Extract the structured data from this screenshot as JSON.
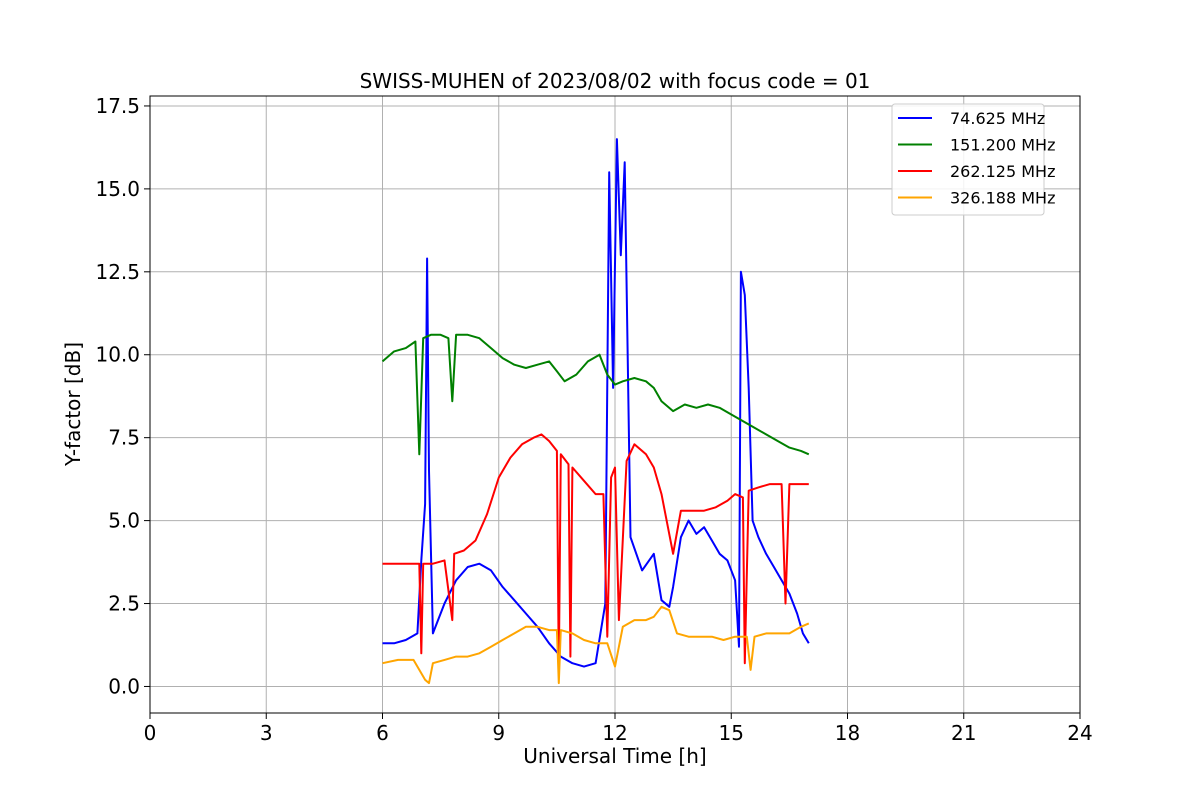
{
  "chart_data": {
    "type": "line",
    "title": "SWISS-MUHEN of 2023/08/02 with focus code = 01",
    "xlabel": "Universal Time [h]",
    "ylabel": "Y-factor [dB]",
    "xlim": [
      0,
      24
    ],
    "ylim": [
      -0.8,
      17.8
    ],
    "x_ticks": [
      0,
      3,
      6,
      9,
      12,
      15,
      18,
      21,
      24
    ],
    "x_tick_labels": [
      "0",
      "3",
      "6",
      "9",
      "12",
      "15",
      "18",
      "21",
      "24"
    ],
    "y_ticks": [
      0,
      2.5,
      5,
      7.5,
      10,
      12.5,
      15,
      17.5
    ],
    "y_tick_labels": [
      "0.0",
      "2.5",
      "5.0",
      "7.5",
      "10.0",
      "12.5",
      "15.0",
      "17.5"
    ],
    "grid": true,
    "legend_position": "top-right",
    "series": [
      {
        "name": "  74.625 MHz",
        "color": "#0000ff",
        "points": [
          [
            6.0,
            1.3
          ],
          [
            6.3,
            1.3
          ],
          [
            6.6,
            1.4
          ],
          [
            6.9,
            1.6
          ],
          [
            7.0,
            3.8
          ],
          [
            7.1,
            5.5
          ],
          [
            7.15,
            12.9
          ],
          [
            7.2,
            6.5
          ],
          [
            7.3,
            1.6
          ],
          [
            7.6,
            2.5
          ],
          [
            7.9,
            3.2
          ],
          [
            8.2,
            3.6
          ],
          [
            8.5,
            3.7
          ],
          [
            8.8,
            3.5
          ],
          [
            9.1,
            3.0
          ],
          [
            9.4,
            2.6
          ],
          [
            9.7,
            2.2
          ],
          [
            10.0,
            1.8
          ],
          [
            10.3,
            1.3
          ],
          [
            10.6,
            0.9
          ],
          [
            10.9,
            0.7
          ],
          [
            11.2,
            0.6
          ],
          [
            11.5,
            0.7
          ],
          [
            11.75,
            2.5
          ],
          [
            11.85,
            15.5
          ],
          [
            11.95,
            9.0
          ],
          [
            12.05,
            16.5
          ],
          [
            12.15,
            13.0
          ],
          [
            12.25,
            15.8
          ],
          [
            12.4,
            4.5
          ],
          [
            12.7,
            3.5
          ],
          [
            13.0,
            4.0
          ],
          [
            13.2,
            2.6
          ],
          [
            13.4,
            2.4
          ],
          [
            13.5,
            3.0
          ],
          [
            13.7,
            4.5
          ],
          [
            13.9,
            5.0
          ],
          [
            14.1,
            4.6
          ],
          [
            14.3,
            4.8
          ],
          [
            14.5,
            4.4
          ],
          [
            14.7,
            4.0
          ],
          [
            14.9,
            3.8
          ],
          [
            15.1,
            3.2
          ],
          [
            15.2,
            1.2
          ],
          [
            15.25,
            12.5
          ],
          [
            15.35,
            11.8
          ],
          [
            15.45,
            9.0
          ],
          [
            15.55,
            5.0
          ],
          [
            15.7,
            4.5
          ],
          [
            15.9,
            4.0
          ],
          [
            16.1,
            3.6
          ],
          [
            16.3,
            3.2
          ],
          [
            16.5,
            2.8
          ],
          [
            16.7,
            2.2
          ],
          [
            16.85,
            1.6
          ],
          [
            17.0,
            1.3
          ]
        ]
      },
      {
        "name": "151.200 MHz",
        "color": "#008000",
        "points": [
          [
            6.0,
            9.8
          ],
          [
            6.3,
            10.1
          ],
          [
            6.6,
            10.2
          ],
          [
            6.85,
            10.4
          ],
          [
            6.95,
            7.0
          ],
          [
            7.05,
            10.5
          ],
          [
            7.25,
            10.6
          ],
          [
            7.5,
            10.6
          ],
          [
            7.7,
            10.5
          ],
          [
            7.8,
            8.6
          ],
          [
            7.9,
            10.6
          ],
          [
            8.2,
            10.6
          ],
          [
            8.5,
            10.5
          ],
          [
            8.8,
            10.2
          ],
          [
            9.1,
            9.9
          ],
          [
            9.4,
            9.7
          ],
          [
            9.7,
            9.6
          ],
          [
            10.0,
            9.7
          ],
          [
            10.3,
            9.8
          ],
          [
            10.5,
            9.5
          ],
          [
            10.7,
            9.2
          ],
          [
            11.0,
            9.4
          ],
          [
            11.3,
            9.8
          ],
          [
            11.6,
            10.0
          ],
          [
            11.8,
            9.4
          ],
          [
            12.0,
            9.1
          ],
          [
            12.2,
            9.2
          ],
          [
            12.5,
            9.3
          ],
          [
            12.8,
            9.2
          ],
          [
            13.0,
            9.0
          ],
          [
            13.2,
            8.6
          ],
          [
            13.5,
            8.3
          ],
          [
            13.8,
            8.5
          ],
          [
            14.1,
            8.4
          ],
          [
            14.4,
            8.5
          ],
          [
            14.7,
            8.4
          ],
          [
            15.0,
            8.2
          ],
          [
            15.3,
            8.0
          ],
          [
            15.6,
            7.8
          ],
          [
            15.9,
            7.6
          ],
          [
            16.2,
            7.4
          ],
          [
            16.5,
            7.2
          ],
          [
            16.8,
            7.1
          ],
          [
            17.0,
            7.0
          ]
        ]
      },
      {
        "name": "262.125 MHz",
        "color": "#ff0000",
        "points": [
          [
            6.0,
            3.7
          ],
          [
            6.3,
            3.7
          ],
          [
            6.6,
            3.7
          ],
          [
            6.95,
            3.7
          ],
          [
            7.0,
            1.0
          ],
          [
            7.05,
            3.7
          ],
          [
            7.3,
            3.7
          ],
          [
            7.6,
            3.8
          ],
          [
            7.8,
            2.0
          ],
          [
            7.85,
            4.0
          ],
          [
            8.1,
            4.1
          ],
          [
            8.4,
            4.4
          ],
          [
            8.7,
            5.2
          ],
          [
            9.0,
            6.3
          ],
          [
            9.3,
            6.9
          ],
          [
            9.6,
            7.3
          ],
          [
            9.9,
            7.5
          ],
          [
            10.1,
            7.6
          ],
          [
            10.3,
            7.4
          ],
          [
            10.5,
            7.1
          ],
          [
            10.55,
            0.5
          ],
          [
            10.6,
            7.0
          ],
          [
            10.8,
            6.7
          ],
          [
            10.85,
            0.9
          ],
          [
            10.9,
            6.6
          ],
          [
            11.2,
            6.2
          ],
          [
            11.5,
            5.8
          ],
          [
            11.7,
            5.8
          ],
          [
            11.8,
            1.5
          ],
          [
            11.9,
            6.3
          ],
          [
            12.0,
            6.6
          ],
          [
            12.1,
            2.0
          ],
          [
            12.3,
            6.8
          ],
          [
            12.5,
            7.3
          ],
          [
            12.8,
            7.0
          ],
          [
            13.0,
            6.6
          ],
          [
            13.2,
            5.8
          ],
          [
            13.5,
            4.0
          ],
          [
            13.7,
            5.3
          ],
          [
            14.0,
            5.3
          ],
          [
            14.3,
            5.3
          ],
          [
            14.6,
            5.4
          ],
          [
            14.9,
            5.6
          ],
          [
            15.1,
            5.8
          ],
          [
            15.3,
            5.7
          ],
          [
            15.35,
            0.7
          ],
          [
            15.45,
            5.9
          ],
          [
            15.7,
            6.0
          ],
          [
            16.0,
            6.1
          ],
          [
            16.3,
            6.1
          ],
          [
            16.4,
            2.5
          ],
          [
            16.5,
            6.1
          ],
          [
            16.8,
            6.1
          ],
          [
            17.0,
            6.1
          ]
        ]
      },
      {
        "name": "326.188 MHz",
        "color": "#ffa500",
        "points": [
          [
            6.0,
            0.7
          ],
          [
            6.4,
            0.8
          ],
          [
            6.8,
            0.8
          ],
          [
            7.1,
            0.2
          ],
          [
            7.2,
            0.1
          ],
          [
            7.3,
            0.7
          ],
          [
            7.6,
            0.8
          ],
          [
            7.9,
            0.9
          ],
          [
            8.2,
            0.9
          ],
          [
            8.5,
            1.0
          ],
          [
            8.8,
            1.2
          ],
          [
            9.1,
            1.4
          ],
          [
            9.4,
            1.6
          ],
          [
            9.7,
            1.8
          ],
          [
            10.0,
            1.8
          ],
          [
            10.3,
            1.7
          ],
          [
            10.5,
            1.7
          ],
          [
            10.55,
            0.1
          ],
          [
            10.6,
            1.7
          ],
          [
            10.9,
            1.6
          ],
          [
            11.2,
            1.4
          ],
          [
            11.5,
            1.3
          ],
          [
            11.8,
            1.3
          ],
          [
            12.0,
            0.6
          ],
          [
            12.2,
            1.8
          ],
          [
            12.5,
            2.0
          ],
          [
            12.8,
            2.0
          ],
          [
            13.0,
            2.1
          ],
          [
            13.2,
            2.4
          ],
          [
            13.4,
            2.3
          ],
          [
            13.6,
            1.6
          ],
          [
            13.9,
            1.5
          ],
          [
            14.2,
            1.5
          ],
          [
            14.5,
            1.5
          ],
          [
            14.8,
            1.4
          ],
          [
            15.1,
            1.5
          ],
          [
            15.4,
            1.5
          ],
          [
            15.5,
            0.5
          ],
          [
            15.6,
            1.5
          ],
          [
            15.9,
            1.6
          ],
          [
            16.2,
            1.6
          ],
          [
            16.5,
            1.6
          ],
          [
            16.8,
            1.8
          ],
          [
            17.0,
            1.9
          ]
        ]
      }
    ]
  }
}
